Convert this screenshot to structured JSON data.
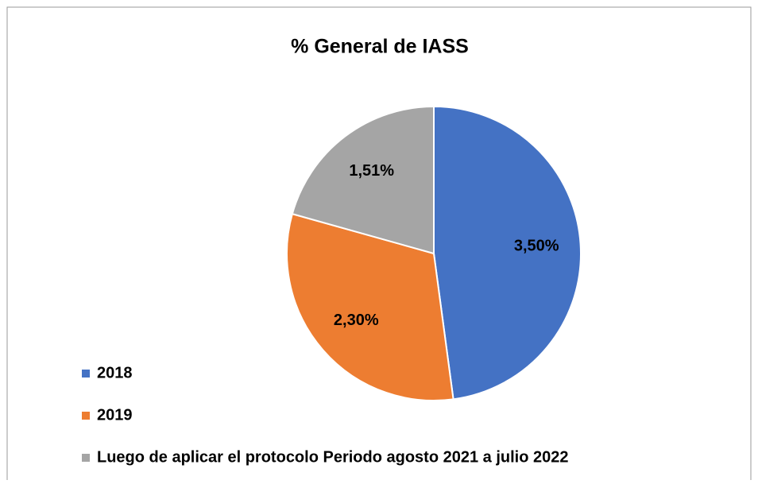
{
  "chart_data": {
    "type": "pie",
    "title": "% General de IASS",
    "categories": [
      "2018",
      "2019",
      "Luego de aplicar el protocolo Periodo agosto 2021 a julio 2022"
    ],
    "values": [
      3.5,
      2.3,
      1.51
    ],
    "value_labels": [
      "3,50%",
      "2,30%",
      "1,51%"
    ],
    "colors": [
      "#4472c4",
      "#ed7d31",
      "#a5a5a5"
    ],
    "legend": "bottom-left"
  }
}
